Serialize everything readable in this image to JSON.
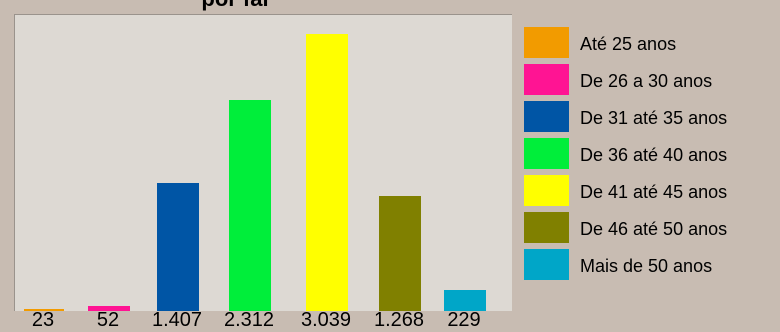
{
  "chart_data": {
    "type": "bar",
    "title": "",
    "title_visible_fragment": "por fai",
    "categories": [
      "Até 25 anos",
      "De 26 a 30 anos",
      "De 31 até 35 anos",
      "De 36 até 40 anos",
      "De 41 até 45 anos",
      "De 46 até 50 anos",
      "Mais de 50 anos"
    ],
    "values": [
      23,
      52,
      1407,
      2312,
      3039,
      1268,
      229
    ],
    "value_labels": [
      "23",
      "52",
      "1.407",
      "2.312",
      "3.039",
      "1.268",
      "229"
    ],
    "colors": [
      "#f29b00",
      "#ff1493",
      "#0055a5",
      "#00ee3a",
      "#ffff00",
      "#808000",
      "#00a6c8"
    ],
    "ylim": [
      0,
      3250
    ],
    "grid": false,
    "legend_position": "right"
  }
}
